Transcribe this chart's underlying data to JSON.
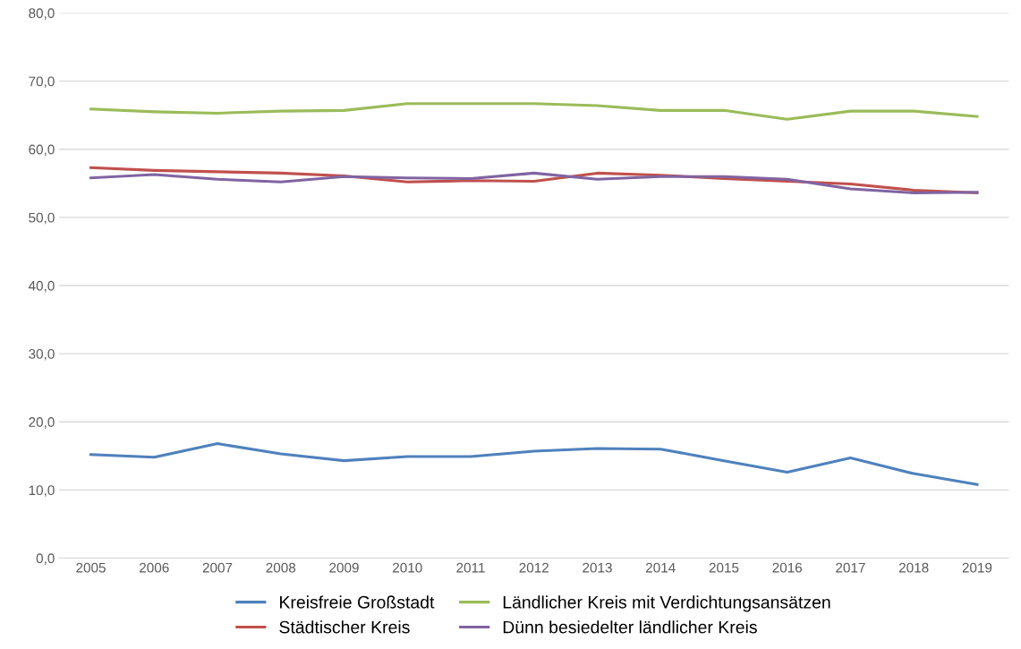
{
  "chart_data": {
    "type": "line",
    "categories": [
      "2005",
      "2006",
      "2007",
      "2008",
      "2009",
      "2010",
      "2011",
      "2012",
      "2013",
      "2014",
      "2015",
      "2016",
      "2017",
      "2018",
      "2019"
    ],
    "series": [
      {
        "name": "Kreisfreie Großstadt",
        "color": "#4f81bd",
        "values": [
          15.2,
          14.8,
          16.8,
          15.3,
          14.3,
          14.9,
          14.9,
          15.7,
          16.1,
          16.0,
          14.3,
          12.6,
          14.7,
          12.4,
          10.8
        ]
      },
      {
        "name": "Städtischer Kreis",
        "color": "#c0504d",
        "values": [
          57.3,
          56.9,
          56.7,
          56.5,
          56.1,
          55.2,
          55.4,
          55.3,
          56.5,
          56.2,
          55.7,
          55.3,
          54.9,
          54.0,
          53.6
        ]
      },
      {
        "name": "Ländlicher Kreis mit Verdichtungsansätzen",
        "color": "#9bbb59",
        "values": [
          65.9,
          65.5,
          65.3,
          65.6,
          65.7,
          66.7,
          66.7,
          66.7,
          66.4,
          65.7,
          65.7,
          64.4,
          65.6,
          65.6,
          64.8
        ]
      },
      {
        "name": "Dünn besiedelter ländlicher Kreis",
        "color": "#8064a2",
        "values": [
          55.8,
          56.3,
          55.6,
          55.2,
          56.0,
          55.8,
          55.7,
          56.5,
          55.6,
          56.0,
          56.0,
          55.6,
          54.2,
          53.6,
          53.7
        ]
      }
    ],
    "ylim": [
      0,
      80
    ],
    "yticks": [
      {
        "value": 0,
        "label": "0,0"
      },
      {
        "value": 10,
        "label": "10,0"
      },
      {
        "value": 20,
        "label": "20,0"
      },
      {
        "value": 30,
        "label": "30,0"
      },
      {
        "value": 40,
        "label": "40,0"
      },
      {
        "value": 50,
        "label": "50,0"
      },
      {
        "value": 60,
        "label": "60,0"
      },
      {
        "value": 70,
        "label": "70,0"
      },
      {
        "value": 80,
        "label": "80,0"
      }
    ],
    "grid": "y",
    "legend": "bottom",
    "marker": "none",
    "line_style": "solid"
  }
}
